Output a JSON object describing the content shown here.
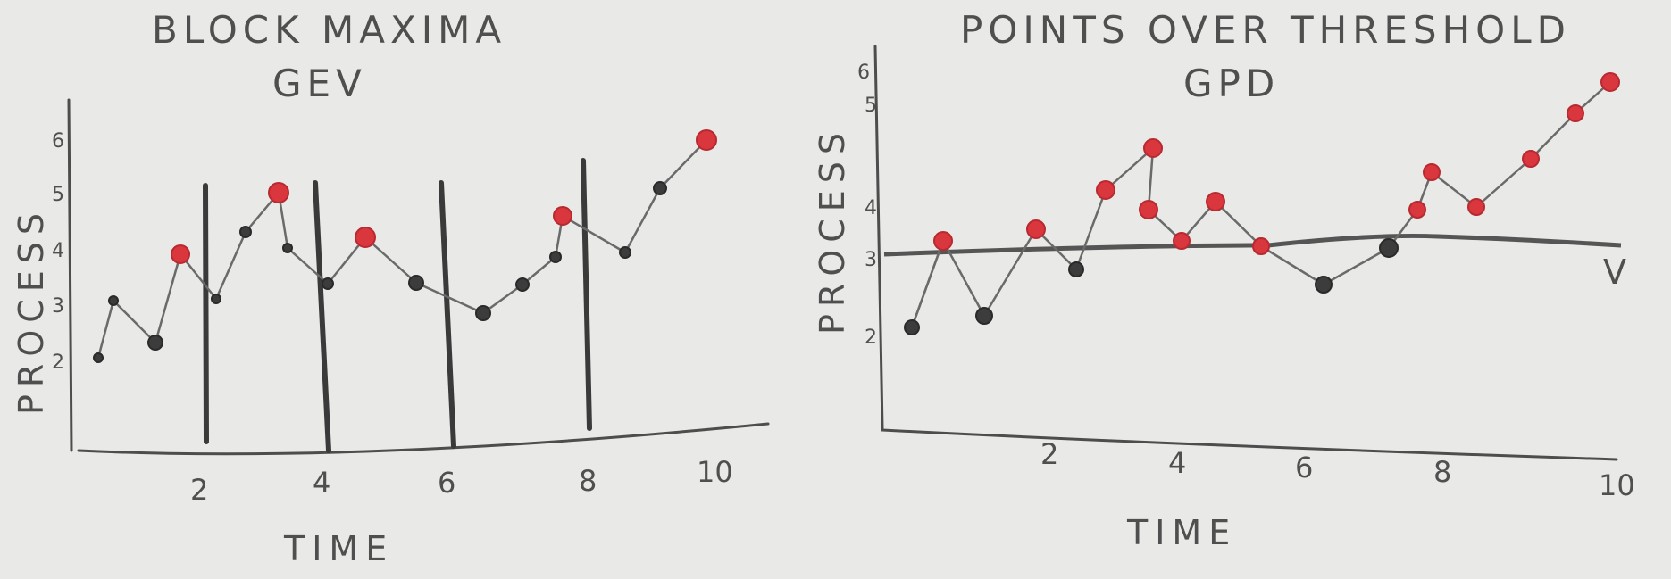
{
  "left_panel": {
    "title_line1": "BLOCK MAXIMA",
    "title_line2": "GEV",
    "ylabel": "PROCESS",
    "xlabel": "TIME",
    "xticks": [
      "2",
      "4",
      "6",
      "8",
      "10"
    ],
    "yticks": [
      "2",
      "3",
      "4",
      "5",
      "6"
    ]
  },
  "right_panel": {
    "title_line1": "POINTS OVER THRESHOLD",
    "title_line2": "GPD",
    "ylabel": "PROCESS",
    "xlabel": "TIME",
    "xticks": [
      "2",
      "4",
      "6",
      "8",
      "10"
    ],
    "yticks": [
      "2",
      "3",
      "4",
      "5",
      "6"
    ],
    "threshold_label": "V"
  },
  "colors": {
    "highlight_point": "#d9363e",
    "regular_point": "#3c3c3c",
    "pencil": "#4d4d4d"
  }
}
